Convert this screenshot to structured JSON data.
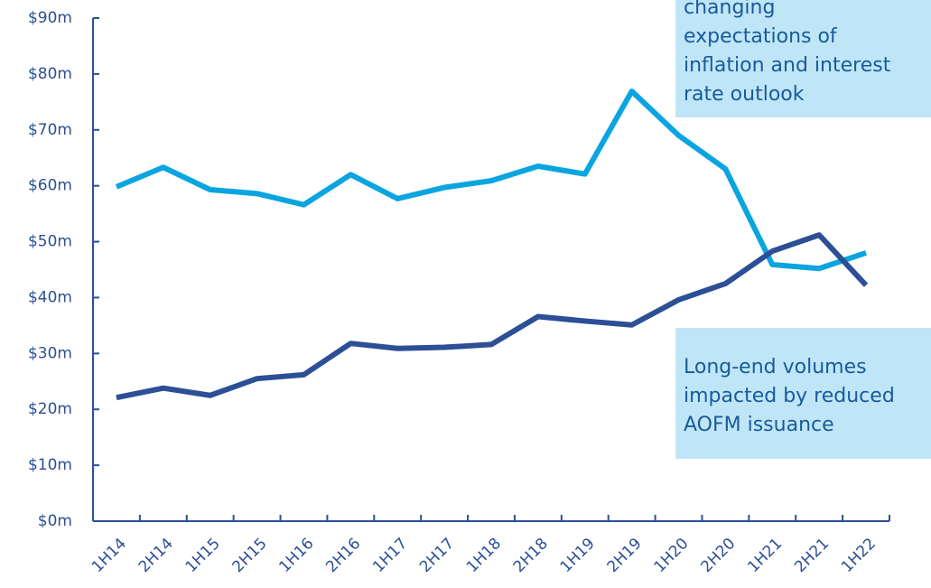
{
  "chart_data": {
    "type": "line",
    "categories": [
      "1H14",
      "2H14",
      "1H15",
      "2H15",
      "1H16",
      "2H16",
      "1H17",
      "2H17",
      "1H18",
      "2H18",
      "1H19",
      "2H19",
      "1H20",
      "2H20",
      "1H21",
      "2H21",
      "1H22"
    ],
    "series": [
      {
        "color": "#0aa5e0",
        "values": [
          59.8,
          63.3,
          59.3,
          58.6,
          56.6,
          62,
          57.7,
          59.7,
          60.9,
          63.5,
          62.1,
          76.9,
          69,
          63,
          45.9,
          45.2,
          48
        ]
      },
      {
        "color": "#2c4f96",
        "values": [
          22.1,
          23.8,
          22.5,
          25.5,
          26.2,
          31.8,
          30.9,
          31.1,
          31.6,
          36.6,
          35.8,
          35.1,
          39.6,
          42.5,
          48.3,
          51.2,
          42.2
        ]
      }
    ],
    "ylim": [
      0,
      90
    ],
    "yticks": [
      {
        "value": 0,
        "label": "$0m"
      },
      {
        "value": 10,
        "label": "$10m"
      },
      {
        "value": 20,
        "label": "$20m"
      },
      {
        "value": 30,
        "label": "$30m"
      },
      {
        "value": 40,
        "label": "$40m"
      },
      {
        "value": 50,
        "label": "$50m"
      },
      {
        "value": 60,
        "label": "$60m"
      },
      {
        "value": 70,
        "label": "$70m"
      },
      {
        "value": 80,
        "label": "$80m"
      },
      {
        "value": 90,
        "label": "$90m"
      }
    ],
    "grid": false,
    "annotations": [
      {
        "lines": [
          "changing",
          "expectations of",
          "inflation and interest",
          "rate outlook"
        ]
      },
      {
        "lines": [
          "Long-end volumes",
          "impacted by reduced",
          "AOFM issuance"
        ]
      }
    ]
  }
}
